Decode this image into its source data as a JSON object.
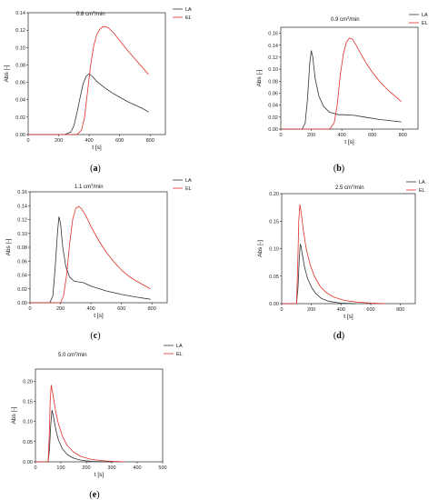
{
  "chart_data": [
    {
      "id": "a",
      "type": "line",
      "caption_letter": "a",
      "title_prefix": "0.8 cm",
      "title_sup": "3",
      "title_suffix": "/min",
      "xlabel": "t [s]",
      "ylabel": "Abs [-]",
      "xlim": [
        0,
        900
      ],
      "ylim": [
        0,
        0.14
      ],
      "xticks": [
        0,
        200,
        400,
        600,
        800
      ],
      "yticks": [
        0.0,
        0.02,
        0.04,
        0.06,
        0.08,
        0.1,
        0.12,
        0.14
      ],
      "ytick_labels": [
        "0.00",
        "0.02",
        "0.04",
        "0.06",
        "0.08",
        "0.10",
        "0.12",
        "0.14"
      ],
      "series": [
        {
          "name": "LA",
          "color": "#333333",
          "x": [
            0,
            240,
            280,
            300,
            320,
            340,
            360,
            380,
            400,
            420,
            450,
            500,
            550,
            600,
            650,
            700,
            750,
            790
          ],
          "y": [
            0,
            0,
            0.003,
            0.01,
            0.025,
            0.042,
            0.058,
            0.067,
            0.07,
            0.067,
            0.061,
            0.054,
            0.048,
            0.043,
            0.038,
            0.034,
            0.03,
            0.026
          ]
        },
        {
          "name": "EL",
          "color": "#e0302a",
          "x": [
            0,
            320,
            350,
            370,
            390,
            410,
            430,
            450,
            470,
            490,
            510,
            530,
            560,
            600,
            650,
            700,
            750,
            790
          ],
          "y": [
            0,
            0,
            0.005,
            0.02,
            0.05,
            0.08,
            0.102,
            0.115,
            0.121,
            0.124,
            0.124,
            0.122,
            0.117,
            0.108,
            0.097,
            0.087,
            0.077,
            0.069
          ]
        }
      ],
      "legend_position": "top-right"
    },
    {
      "id": "b",
      "type": "line",
      "caption_letter": "b",
      "title_prefix": "0.9 cm",
      "title_sup": "3",
      "title_suffix": "/min",
      "xlabel": "t [s]",
      "ylabel": "Abs [-]",
      "xlim": [
        0,
        900
      ],
      "ylim": [
        0,
        0.17
      ],
      "xticks": [
        0,
        200,
        400,
        600,
        800
      ],
      "yticks": [
        0.0,
        0.02,
        0.04,
        0.06,
        0.08,
        0.1,
        0.12,
        0.14,
        0.16
      ],
      "ytick_labels": [
        "0.00",
        "0.02",
        "0.04",
        "0.06",
        "0.08",
        "0.10",
        "0.12",
        "0.14",
        "0.16"
      ],
      "series": [
        {
          "name": "LA",
          "color": "#333333",
          "x": [
            0,
            140,
            160,
            175,
            190,
            200,
            210,
            225,
            250,
            280,
            320,
            380,
            420,
            480,
            550,
            650,
            720,
            790
          ],
          "y": [
            0,
            0,
            0.01,
            0.05,
            0.11,
            0.131,
            0.12,
            0.085,
            0.055,
            0.038,
            0.028,
            0.024,
            0.024,
            0.023,
            0.02,
            0.016,
            0.014,
            0.012
          ]
        },
        {
          "name": "EL",
          "color": "#e0302a",
          "x": [
            0,
            320,
            350,
            370,
            390,
            410,
            430,
            450,
            470,
            490,
            520,
            560,
            600,
            650,
            700,
            750,
            790
          ],
          "y": [
            0,
            0,
            0.01,
            0.04,
            0.09,
            0.125,
            0.145,
            0.152,
            0.15,
            0.142,
            0.128,
            0.11,
            0.095,
            0.079,
            0.066,
            0.055,
            0.046
          ]
        }
      ],
      "legend_position": "top-right"
    },
    {
      "id": "c",
      "type": "line",
      "caption_letter": "c",
      "title_prefix": "1.1 cm",
      "title_sup": "3",
      "title_suffix": "/min",
      "xlabel": "t [s]",
      "ylabel": "Abs [-]",
      "xlim": [
        0,
        900
      ],
      "ylim": [
        0,
        0.16
      ],
      "xticks": [
        0,
        200,
        400,
        600,
        800
      ],
      "yticks": [
        0.0,
        0.02,
        0.04,
        0.06,
        0.08,
        0.1,
        0.12,
        0.14,
        0.16
      ],
      "ytick_labels": [
        "0.00",
        "0.02",
        "0.04",
        "0.06",
        "0.08",
        "0.10",
        "0.12",
        "0.14",
        "0.16"
      ],
      "series": [
        {
          "name": "LA",
          "color": "#333333",
          "x": [
            0,
            130,
            150,
            165,
            180,
            190,
            200,
            215,
            235,
            260,
            290,
            320,
            350,
            400,
            500,
            600,
            700,
            790
          ],
          "y": [
            0,
            0,
            0.01,
            0.05,
            0.1,
            0.124,
            0.115,
            0.08,
            0.052,
            0.037,
            0.031,
            0.03,
            0.029,
            0.024,
            0.017,
            0.012,
            0.008,
            0.005
          ]
        },
        {
          "name": "EL",
          "color": "#e0302a",
          "x": [
            0,
            200,
            220,
            240,
            260,
            280,
            300,
            320,
            340,
            370,
            400,
            450,
            500,
            550,
            600,
            650,
            700,
            790
          ],
          "y": [
            0,
            0,
            0.01,
            0.04,
            0.085,
            0.12,
            0.136,
            0.139,
            0.135,
            0.124,
            0.11,
            0.09,
            0.073,
            0.059,
            0.047,
            0.038,
            0.031,
            0.02
          ]
        }
      ],
      "legend_position": "top-right"
    },
    {
      "id": "d",
      "type": "line",
      "caption_letter": "d",
      "title_prefix": "2.5 cm",
      "title_sup": "3",
      "title_suffix": "/min",
      "xlabel": "t [s]",
      "ylabel": "Abs [-]",
      "xlim": [
        0,
        900
      ],
      "ylim": [
        0,
        0.2
      ],
      "xticks": [
        0,
        200,
        400,
        600,
        800
      ],
      "yticks": [
        0.0,
        0.05,
        0.1,
        0.15,
        0.2
      ],
      "ytick_labels": [
        "0.00",
        "0.05",
        "0.10",
        "0.15",
        "0.20"
      ],
      "series": [
        {
          "name": "LA",
          "color": "#333333",
          "x": [
            0,
            100,
            110,
            118,
            125,
            130,
            140,
            155,
            175,
            200,
            230,
            270,
            320,
            400,
            500
          ],
          "y": [
            0,
            0,
            0.03,
            0.08,
            0.108,
            0.105,
            0.088,
            0.065,
            0.045,
            0.03,
            0.018,
            0.009,
            0.004,
            0.001,
            0
          ]
        },
        {
          "name": "EL",
          "color": "#e0302a",
          "x": [
            0,
            100,
            108,
            115,
            122,
            130,
            145,
            165,
            190,
            220,
            260,
            300,
            350,
            420,
            500,
            600,
            700
          ],
          "y": [
            0,
            0,
            0.07,
            0.15,
            0.18,
            0.168,
            0.135,
            0.1,
            0.072,
            0.05,
            0.031,
            0.02,
            0.012,
            0.006,
            0.003,
            0.001,
            0
          ]
        }
      ],
      "legend_position": "top-right"
    },
    {
      "id": "e",
      "type": "line",
      "caption_letter": "e",
      "title_prefix": "5.0 cm",
      "title_sup": "3",
      "title_suffix": "/min",
      "xlabel": "t [s]",
      "ylabel": "Abs [-]",
      "xlim": [
        0,
        500
      ],
      "ylim": [
        0,
        0.23
      ],
      "xticks": [
        0,
        100,
        200,
        300,
        400,
        500
      ],
      "yticks": [
        0.0,
        0.05,
        0.1,
        0.15,
        0.2
      ],
      "ytick_labels": [
        "0.00",
        "0.05",
        "0.10",
        "0.15",
        "0.20"
      ],
      "series": [
        {
          "name": "LA",
          "color": "#333333",
          "x": [
            0,
            50,
            55,
            60,
            65,
            70,
            80,
            90,
            105,
            125,
            150,
            180,
            220,
            300
          ],
          "y": [
            0,
            0,
            0.03,
            0.09,
            0.128,
            0.115,
            0.08,
            0.055,
            0.033,
            0.018,
            0.009,
            0.004,
            0.001,
            0
          ]
        },
        {
          "name": "EL",
          "color": "#e0302a",
          "x": [
            0,
            50,
            54,
            58,
            62,
            68,
            78,
            90,
            105,
            125,
            150,
            180,
            220,
            280,
            350
          ],
          "y": [
            0,
            0,
            0.06,
            0.15,
            0.19,
            0.17,
            0.13,
            0.095,
            0.065,
            0.04,
            0.024,
            0.013,
            0.006,
            0.002,
            0
          ]
        }
      ],
      "legend_position": "top-right"
    }
  ]
}
